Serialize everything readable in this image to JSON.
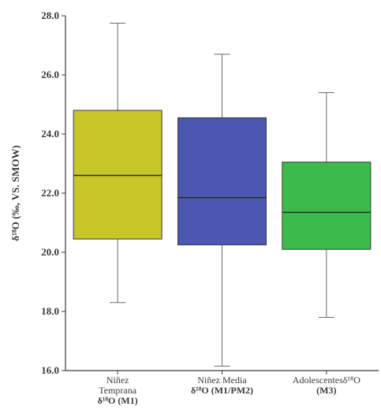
{
  "chart_data": {
    "type": "box",
    "ylabel": "δ¹⁸O (‰, VS. SMOW)",
    "ylim": [
      16.0,
      28.0
    ],
    "yticks": [
      "16.0",
      "18.0",
      "20.0",
      "22.0",
      "24.0",
      "26.0",
      "28.0"
    ],
    "grid": false,
    "categories": [
      {
        "lines": [
          "Niñez",
          "Temprana"
        ],
        "bold_line": "δ¹⁸O (M1)",
        "min": 18.3,
        "q1": 20.45,
        "median": 22.6,
        "q3": 24.8,
        "max": 27.75,
        "color": "#c8c528"
      },
      {
        "lines": [
          "Niñez Media"
        ],
        "bold_line": "δ¹⁸O (M1/PM2)",
        "min": 16.15,
        "q1": 20.25,
        "median": 21.85,
        "q3": 24.55,
        "max": 26.7,
        "color": "#4b57b0"
      },
      {
        "lines": [
          "Adolescentesδ¹⁸O"
        ],
        "bold_line": "(M3)",
        "min": 17.8,
        "q1": 20.1,
        "median": 21.35,
        "q3": 23.05,
        "max": 25.4,
        "color": "#3dbb4a"
      }
    ]
  }
}
